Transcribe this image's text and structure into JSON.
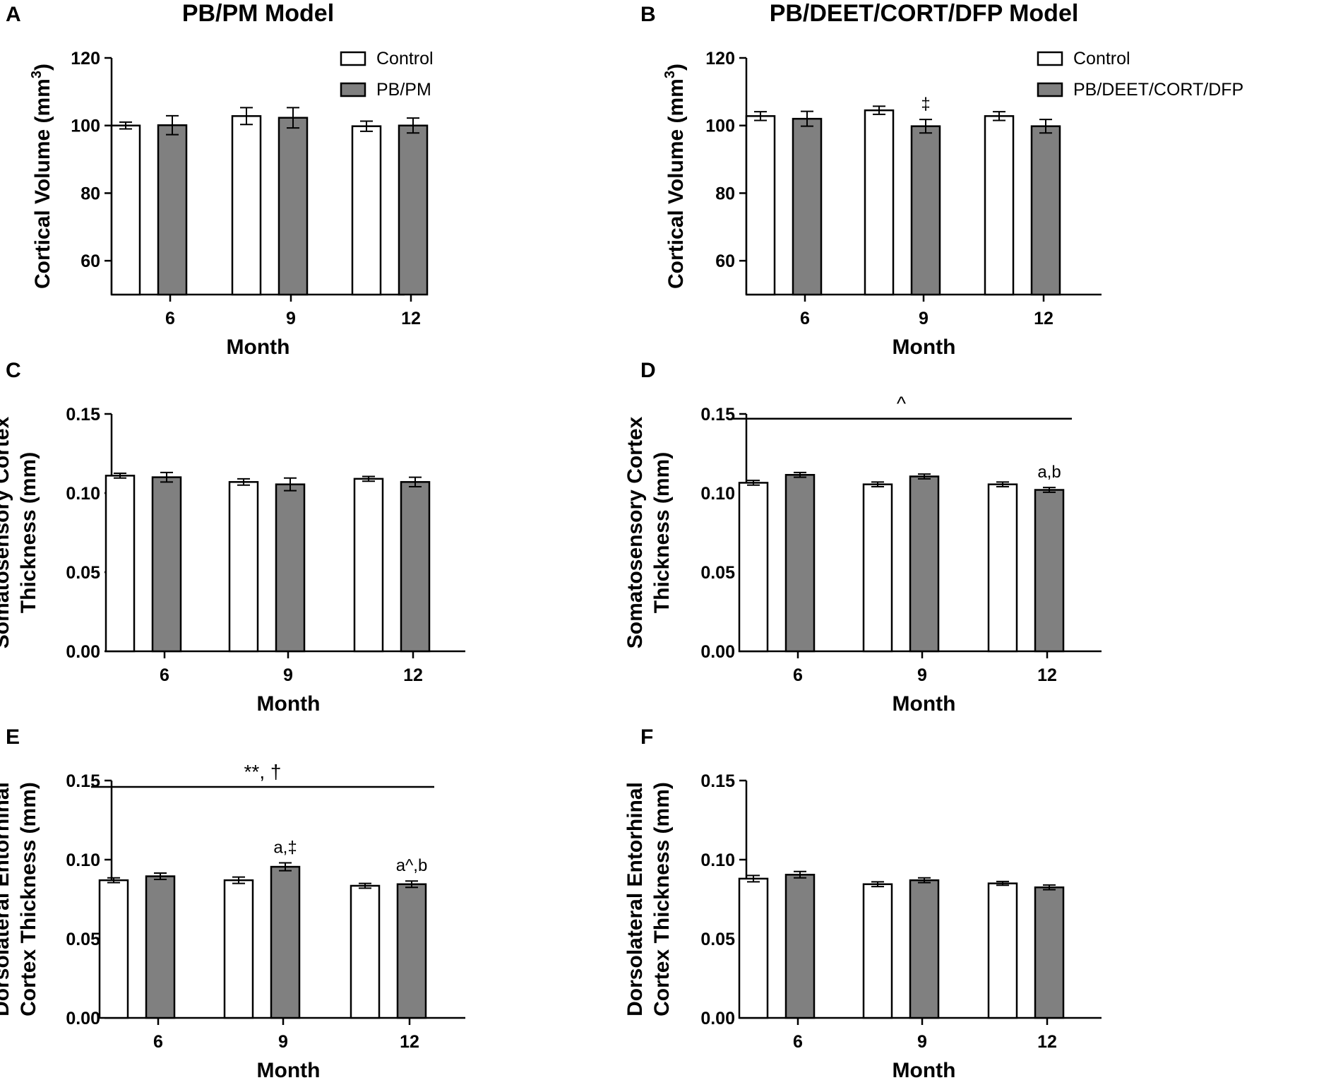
{
  "figure": {
    "colors": {
      "control": "#ffffff",
      "treated": "#808080",
      "stroke": "#000000"
    }
  },
  "chart_data": [
    {
      "panel": "A",
      "type": "bar",
      "title": "PB/PM Model",
      "xlabel": "Month",
      "ylabel_lines": [
        "Cortical Volume (mm3)"
      ],
      "ylabel_sup": "3",
      "ylim": [
        50,
        120
      ],
      "yticks": [
        60,
        80,
        100,
        120
      ],
      "tick_decimals": 0,
      "categories": [
        "6",
        "9",
        "12"
      ],
      "legend": [
        "Control",
        "PB/PM"
      ],
      "series": [
        {
          "name": "Control",
          "values": [
            100,
            102.8,
            99.8
          ],
          "errors": [
            1.0,
            2.5,
            1.5
          ]
        },
        {
          "name": "PB/PM",
          "values": [
            100.1,
            102.3,
            100.0
          ],
          "errors": [
            2.8,
            3.0,
            2.2
          ]
        }
      ],
      "annotations": [],
      "significance_line": null
    },
    {
      "panel": "B",
      "type": "bar",
      "title": "PB/DEET/CORT/DFP Model",
      "xlabel": "Month",
      "ylabel_lines": [
        "Cortical Volume (mm3)"
      ],
      "ylabel_sup": "3",
      "ylim": [
        50,
        120
      ],
      "yticks": [
        60,
        80,
        100,
        120
      ],
      "tick_decimals": 0,
      "categories": [
        "6",
        "9",
        "12"
      ],
      "legend": [
        "Control",
        "PB/DEET/CORT/DFP"
      ],
      "series": [
        {
          "name": "Control",
          "values": [
            102.8,
            104.5,
            102.8
          ],
          "errors": [
            1.3,
            1.2,
            1.3
          ]
        },
        {
          "name": "PB/DEET/CORT/DFP",
          "values": [
            102.0,
            99.8,
            99.8
          ],
          "errors": [
            2.2,
            2.0,
            2.0
          ]
        }
      ],
      "annotations": [
        {
          "text": "‡",
          "category": 1,
          "series": 1
        }
      ],
      "significance_line": null
    },
    {
      "panel": "C",
      "type": "bar",
      "title": "",
      "xlabel": "Month",
      "ylabel_lines": [
        "Somatosensory Cortex",
        "Thickness (mm)"
      ],
      "ylabel_sup": "",
      "ylim": [
        0,
        0.15
      ],
      "yticks": [
        0,
        0.05,
        0.1,
        0.15
      ],
      "tick_decimals": 2,
      "categories": [
        "6",
        "9",
        "12"
      ],
      "legend": [],
      "series": [
        {
          "name": "Control",
          "values": [
            0.111,
            0.107,
            0.109
          ],
          "errors": [
            0.0015,
            0.002,
            0.0015
          ]
        },
        {
          "name": "PB/PM",
          "values": [
            0.11,
            0.1055,
            0.107
          ],
          "errors": [
            0.003,
            0.004,
            0.003
          ]
        }
      ],
      "annotations": [],
      "significance_line": null
    },
    {
      "panel": "D",
      "type": "bar",
      "title": "",
      "xlabel": "Month",
      "ylabel_lines": [
        "Somatosensory Cortex",
        "Thickness (mm)"
      ],
      "ylabel_sup": "",
      "ylim": [
        0,
        0.15
      ],
      "yticks": [
        0,
        0.05,
        0.1,
        0.15
      ],
      "tick_decimals": 2,
      "categories": [
        "6",
        "9",
        "12"
      ],
      "legend": [],
      "series": [
        {
          "name": "Control",
          "values": [
            0.1065,
            0.1055,
            0.1055
          ],
          "errors": [
            0.0015,
            0.0015,
            0.0015
          ]
        },
        {
          "name": "PB/DEET/CORT/DFP",
          "values": [
            0.1115,
            0.1105,
            0.102
          ],
          "errors": [
            0.0015,
            0.0015,
            0.0015
          ]
        }
      ],
      "annotations": [
        {
          "text": "a,b",
          "category": 2,
          "series": 1
        }
      ],
      "significance_line": {
        "label": "^",
        "y": 0.147
      }
    },
    {
      "panel": "E",
      "type": "bar",
      "title": "",
      "xlabel": "Month",
      "ylabel_lines": [
        "Dorsolateral Entorhinal",
        "Cortex Thickness (mm)"
      ],
      "ylabel_sup": "",
      "ylim": [
        0,
        0.15
      ],
      "yticks": [
        0,
        0.05,
        0.1,
        0.15
      ],
      "tick_decimals": 2,
      "categories": [
        "6",
        "9",
        "12"
      ],
      "legend": [],
      "series": [
        {
          "name": "Control",
          "values": [
            0.087,
            0.087,
            0.0835
          ],
          "errors": [
            0.0015,
            0.002,
            0.0015
          ]
        },
        {
          "name": "PB/PM",
          "values": [
            0.0895,
            0.0955,
            0.0845
          ],
          "errors": [
            0.002,
            0.0025,
            0.002
          ]
        }
      ],
      "annotations": [
        {
          "text": "a,‡",
          "category": 1,
          "series": 1
        },
        {
          "text": "a^,b",
          "category": 2,
          "series": 1
        }
      ],
      "significance_line": {
        "label": "**, †",
        "y": 0.146
      }
    },
    {
      "panel": "F",
      "type": "bar",
      "title": "",
      "xlabel": "Month",
      "ylabel_lines": [
        "Dorsolateral Entorhinal",
        "Cortex Thickness (mm)"
      ],
      "ylabel_sup": "",
      "ylim": [
        0,
        0.15
      ],
      "yticks": [
        0,
        0.05,
        0.1,
        0.15
      ],
      "tick_decimals": 2,
      "categories": [
        "6",
        "9",
        "12"
      ],
      "legend": [],
      "series": [
        {
          "name": "Control",
          "values": [
            0.088,
            0.0845,
            0.085
          ],
          "errors": [
            0.002,
            0.0015,
            0.0012
          ]
        },
        {
          "name": "PB/DEET/CORT/DFP",
          "values": [
            0.0905,
            0.087,
            0.0825
          ],
          "errors": [
            0.002,
            0.0015,
            0.0015
          ]
        }
      ],
      "annotations": [],
      "significance_line": null
    }
  ]
}
